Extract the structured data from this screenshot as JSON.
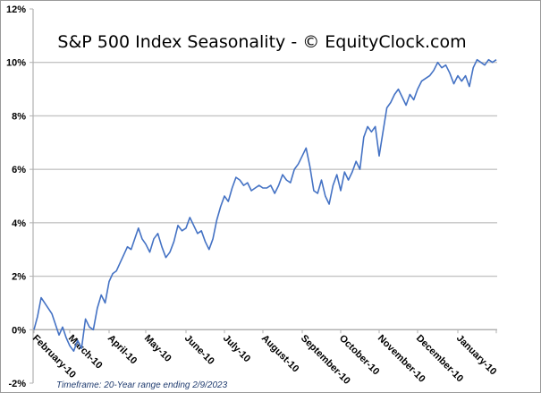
{
  "chart_data": {
    "type": "line",
    "title": "S&P 500 Index Seasonality - © EquityClock.com",
    "footnote": "Timeframe: 20-Year range ending 2/9/2023",
    "xlabel": "",
    "ylabel": "",
    "ylim": [
      -2,
      12
    ],
    "yticks": [
      -2,
      0,
      2,
      4,
      6,
      8,
      10,
      12
    ],
    "ytick_labels": [
      "-2%",
      "0%",
      "2%",
      "4%",
      "6%",
      "8%",
      "10%",
      "12%"
    ],
    "grid": true,
    "x_tick_labels": [
      "February-10",
      "March-10",
      "April-10",
      "May-10",
      "June-10",
      "July-10",
      "August-10",
      "September-10",
      "October-10",
      "November-10",
      "December-10",
      "January-10"
    ],
    "line_color": "#4472c4",
    "series": [
      {
        "name": "S&P 500 Index Seasonality",
        "x_month": [
          0,
          0.1,
          0.2,
          0.3,
          0.4,
          0.5,
          0.6,
          0.7,
          0.8,
          0.9,
          1.0,
          1.1,
          1.2,
          1.3,
          1.4,
          1.5,
          1.6,
          1.7,
          1.8,
          1.9,
          2.0,
          2.1,
          2.2,
          2.3,
          2.4,
          2.5,
          2.6,
          2.7,
          2.8,
          2.9,
          3.0,
          3.1,
          3.2,
          3.3,
          3.4,
          3.5,
          3.6,
          3.7,
          3.8,
          3.9,
          4.0,
          4.1,
          4.2,
          4.3,
          4.4,
          4.5,
          4.6,
          4.7,
          4.8,
          4.9,
          5.0,
          5.1,
          5.2,
          5.3,
          5.4,
          5.5,
          5.6,
          5.7,
          5.8,
          5.9,
          6.0,
          6.1,
          6.2,
          6.3,
          6.4,
          6.5,
          6.6,
          6.7,
          6.8,
          6.9,
          7.0,
          7.1,
          7.2,
          7.3,
          7.4,
          7.5,
          7.6,
          7.7,
          7.8,
          7.9,
          8.0,
          8.1,
          8.2,
          8.3,
          8.4,
          8.5,
          8.6,
          8.7,
          8.8,
          8.9,
          9.0,
          9.1,
          9.2,
          9.3,
          9.4,
          9.5,
          9.6,
          9.7,
          9.8,
          9.9,
          10.0,
          10.1,
          10.2,
          10.3,
          10.4,
          10.5,
          10.6,
          10.7,
          10.8,
          10.9,
          11.0,
          11.1,
          11.2,
          11.3,
          11.4,
          11.5,
          11.6,
          11.7,
          11.8,
          11.9,
          12.0
        ],
        "values": [
          0.0,
          0.5,
          1.2,
          1.0,
          0.8,
          0.6,
          0.2,
          -0.2,
          0.1,
          -0.3,
          -0.6,
          -0.8,
          -0.4,
          -0.7,
          0.4,
          0.1,
          0.0,
          0.8,
          1.3,
          1.0,
          1.8,
          2.1,
          2.2,
          2.5,
          2.8,
          3.1,
          3.0,
          3.4,
          3.8,
          3.4,
          3.2,
          2.9,
          3.4,
          3.6,
          3.1,
          2.7,
          2.9,
          3.3,
          3.9,
          3.7,
          3.8,
          4.2,
          3.9,
          3.6,
          3.7,
          3.3,
          3.0,
          3.4,
          4.1,
          4.6,
          5.0,
          4.8,
          5.3,
          5.7,
          5.6,
          5.4,
          5.5,
          5.2,
          5.3,
          5.4,
          5.3,
          5.3,
          5.4,
          5.1,
          5.4,
          5.8,
          5.6,
          5.5,
          6.0,
          6.2,
          6.5,
          6.8,
          6.1,
          5.2,
          5.1,
          5.6,
          5.0,
          4.7,
          5.4,
          5.8,
          5.2,
          5.9,
          5.6,
          5.9,
          6.3,
          6.0,
          7.2,
          7.6,
          7.4,
          7.6,
          6.5,
          7.4,
          8.3,
          8.5,
          8.8,
          9.0,
          8.7,
          8.4,
          8.8,
          8.6,
          9.0,
          9.3,
          9.4,
          9.5,
          9.7,
          10.0,
          9.8,
          9.9,
          9.6,
          9.2,
          9.5,
          9.3,
          9.5,
          9.1,
          9.8,
          10.1,
          10.0,
          9.9,
          10.1,
          10.0,
          10.1
        ]
      }
    ]
  }
}
